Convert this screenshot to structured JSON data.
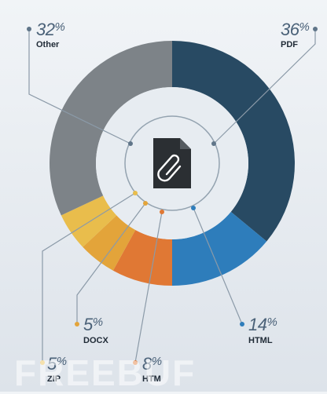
{
  "chart_data": {
    "type": "pie",
    "variant": "donut",
    "slices": [
      {
        "label": "PDF",
        "percent": "36",
        "value": 36,
        "color": "#284a63"
      },
      {
        "label": "HTML",
        "percent": "14",
        "value": 14,
        "color": "#2e7dbb"
      },
      {
        "label": "HTM",
        "percent": "8",
        "value": 8,
        "color": "#e07834"
      },
      {
        "label": "DOCX",
        "percent": "5",
        "value": 5,
        "color": "#e3a43a"
      },
      {
        "label": "ZIP",
        "percent": "5",
        "value": 5,
        "color": "#e9bd4c"
      },
      {
        "label": "Other",
        "percent": "32",
        "value": 32,
        "color": "#7d8388"
      }
    ],
    "percent_sign": "%",
    "center_icon": "attachment-file-icon"
  },
  "watermark": "FREEBUF"
}
